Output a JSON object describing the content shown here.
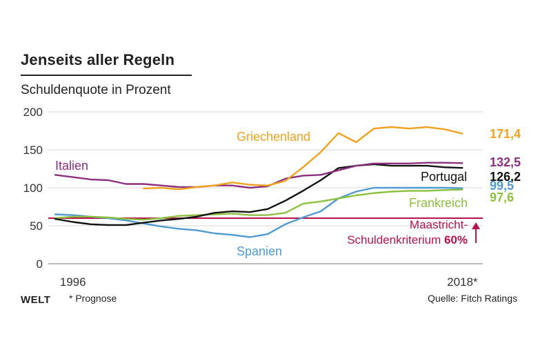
{
  "title": "Jenseits aller Regeln",
  "subtitle": "Schuldenquote in Prozent",
  "footer": {
    "logo": "WELT",
    "note": "* Prognose",
    "source": "Quelle: Fitch Ratings"
  },
  "chart_data": {
    "type": "line",
    "title": "Jenseits aller Regeln",
    "ylabel": "Schuldenquote in Prozent",
    "xlabel": "",
    "ylim": [
      0,
      200
    ],
    "yticks": [
      0,
      50,
      100,
      150,
      200
    ],
    "xlim": [
      1995,
      2019
    ],
    "x_tick_labels": [
      {
        "x": 1996,
        "label": "1996"
      },
      {
        "x": 2018,
        "label": "2018*"
      }
    ],
    "x": [
      1995,
      1996,
      1997,
      1998,
      1999,
      2000,
      2001,
      2002,
      2003,
      2004,
      2005,
      2006,
      2007,
      2008,
      2009,
      2010,
      2011,
      2012,
      2013,
      2014,
      2015,
      2016,
      2017,
      2018
    ],
    "series": [
      {
        "name": "Griechenland",
        "color": "#f0a21e",
        "end_label": "171,4",
        "values": [
          null,
          null,
          null,
          null,
          null,
          99,
          100,
          98,
          101,
          103,
          107,
          104,
          103,
          109,
          127,
          147,
          172,
          160,
          178,
          180,
          178,
          180,
          177,
          171.4
        ]
      },
      {
        "name": "Italien",
        "color": "#8b2f7e",
        "end_label": "132,5",
        "values": [
          117,
          114,
          111,
          110,
          105,
          105,
          103,
          101,
          101,
          103,
          103,
          100,
          102,
          112,
          116,
          117,
          123,
          129,
          132,
          132,
          132,
          133,
          133,
          132.5
        ]
      },
      {
        "name": "Portugal",
        "color": "#111111",
        "end_label": "126,2",
        "values": [
          59,
          55,
          52,
          51,
          51,
          54,
          57,
          59,
          62,
          67,
          69,
          68,
          72,
          83,
          96,
          110,
          126,
          129,
          131,
          129,
          129,
          129,
          127,
          126.2
        ]
      },
      {
        "name": "Spanien",
        "color": "#4f9ad1",
        "end_label": "99,5",
        "values": [
          65,
          64,
          62,
          60,
          57,
          53,
          49,
          46,
          44,
          40,
          38,
          35,
          39,
          52,
          61,
          69,
          86,
          95,
          100,
          100,
          100,
          100,
          100,
          99.5
        ]
      },
      {
        "name": "Frankreich",
        "color": "#8cc13f",
        "end_label": "97,6",
        "values": [
          60,
          62,
          62,
          61,
          59,
          58,
          60,
          63,
          64,
          65,
          66,
          64,
          64,
          67,
          79,
          82,
          86,
          90,
          93,
          95,
          96,
          96,
          97,
          97.6
        ]
      }
    ],
    "reference_line": {
      "value": 60,
      "color": "#b5124d",
      "label_line1": "Maastricht-",
      "label_line2": "Schuldenkriterium",
      "label_value": "60%"
    }
  }
}
